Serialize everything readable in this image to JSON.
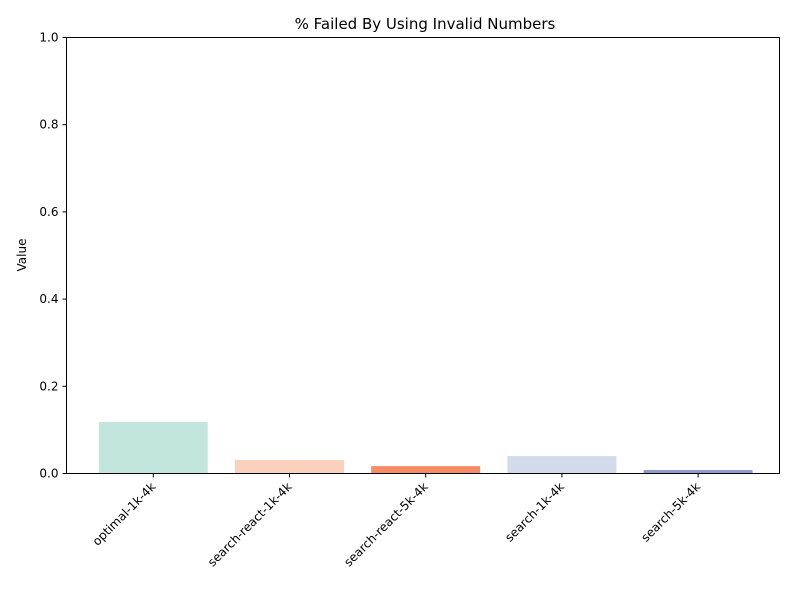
{
  "chart_data": {
    "type": "bar",
    "title": "% Failed By Using Invalid Numbers",
    "xlabel": "",
    "ylabel": "Value",
    "ylim": [
      0,
      1.0
    ],
    "yticks": [
      "0.0",
      "0.2",
      "0.4",
      "0.6",
      "0.8",
      "1.0"
    ],
    "ytick_values": [
      0,
      0.2,
      0.4,
      0.6,
      0.8,
      1.0
    ],
    "categories": [
      "optimal-1k-4k",
      "search-react-1k-4k",
      "search-react-5k-4k",
      "search-1k-4k",
      "search-5k-4k"
    ],
    "values": [
      0.118,
      0.031,
      0.017,
      0.04,
      0.008
    ],
    "colors": [
      "#c3e6dc",
      "#fbd0bd",
      "#f58c66",
      "#d3daea",
      "#8e9bcb"
    ],
    "grid": false,
    "legend": "none"
  }
}
